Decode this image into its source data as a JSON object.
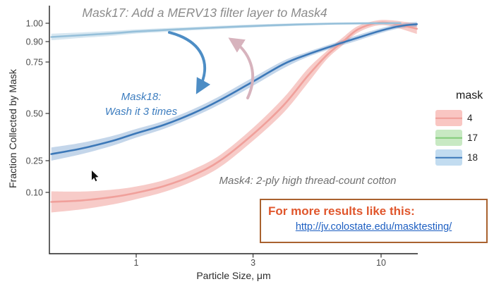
{
  "axes": {
    "x_label": "Particle Size, μm",
    "y_label": "Fraction Collected by Mask"
  },
  "annotations": {
    "mask17": "Mask17: Add a MERV13 filter layer to Mask4",
    "mask18_line1": "Mask18:",
    "mask18_line2": "Wash it 3 times",
    "mask4": "Mask4: 2-ply high thread-count cotton"
  },
  "promo": {
    "headline": "For more results like this:",
    "link": "http://jv.colostate.edu/masktesting/",
    "border_color": "#a9622f",
    "headline_color": "#e0562c",
    "link_color": "#1d5fc2"
  },
  "legend": {
    "title": "mask",
    "items": [
      {
        "label": "4",
        "fill": "#f9c6c2",
        "line": "#ef9d98"
      },
      {
        "label": "17",
        "fill": "#c8e9c3",
        "line": "#82cb7a"
      },
      {
        "label": "18",
        "fill": "#c2dcf0",
        "line": "#3c78b8"
      }
    ]
  },
  "chart_data": {
    "type": "line",
    "title": "",
    "xlabel": "Particle Size, μm",
    "ylabel": "Fraction Collected by Mask",
    "x_scale": "log10",
    "x_ticks": [
      1,
      3,
      10
    ],
    "y_ticks": [
      0.1,
      0.25,
      0.5,
      0.75,
      0.9,
      1.0
    ],
    "x_range": [
      0.45,
      14
    ],
    "y_range": [
      0,
      1.03
    ],
    "grid": false,
    "legend_position": "right",
    "series": [
      {
        "name": "4",
        "label": "Mask4: 2-ply high thread-count cotton",
        "color": "#f0a09b",
        "ribbon_opacity": 0.55,
        "x": [
          0.45,
          0.6,
          0.8,
          1.0,
          1.3,
          1.7,
          2.2,
          3.0,
          4.0,
          5.0,
          6.0,
          7.0,
          8.0,
          9.5,
          11,
          14
        ],
        "y": [
          0.055,
          0.062,
          0.078,
          0.098,
          0.13,
          0.18,
          0.25,
          0.39,
          0.54,
          0.68,
          0.8,
          0.9,
          0.965,
          1.0,
          1.0,
          0.97
        ],
        "ci": [
          0.05,
          0.042,
          0.035,
          0.03,
          0.028,
          0.028,
          0.03,
          0.034,
          0.036,
          0.035,
          0.03,
          0.024,
          0.018,
          0.014,
          0.016,
          0.028
        ]
      },
      {
        "name": "17",
        "label": "Mask17: Add a MERV13 filter layer to Mask4",
        "color": "#96c0da",
        "ribbon_opacity": 0.38,
        "x": [
          0.45,
          0.6,
          0.8,
          1.0,
          1.4,
          2.0,
          3.0,
          4.5,
          6.5,
          9,
          12
        ],
        "y": [
          0.925,
          0.935,
          0.945,
          0.955,
          0.965,
          0.975,
          0.985,
          0.993,
          0.998,
          1.0,
          1.0
        ],
        "ci": [
          0.018,
          0.015,
          0.013,
          0.011,
          0.01,
          0.009,
          0.008,
          0.007,
          0.006,
          0.006,
          0.007
        ]
      },
      {
        "name": "18",
        "label": "Mask18: Wash it 3 times",
        "color": "#3c78b8",
        "ribbon_opacity": 0.3,
        "x": [
          0.45,
          0.6,
          0.8,
          1.0,
          1.3,
          1.7,
          2.2,
          3.0,
          4.0,
          5.0,
          6.5,
          8.0,
          10,
          12,
          14
        ],
        "y": [
          0.285,
          0.315,
          0.355,
          0.395,
          0.44,
          0.5,
          0.565,
          0.655,
          0.74,
          0.805,
          0.875,
          0.92,
          0.96,
          0.985,
          0.995
        ],
        "ci": [
          0.035,
          0.03,
          0.026,
          0.023,
          0.021,
          0.02,
          0.02,
          0.02,
          0.02,
          0.019,
          0.017,
          0.015,
          0.013,
          0.012,
          0.013
        ]
      }
    ]
  }
}
